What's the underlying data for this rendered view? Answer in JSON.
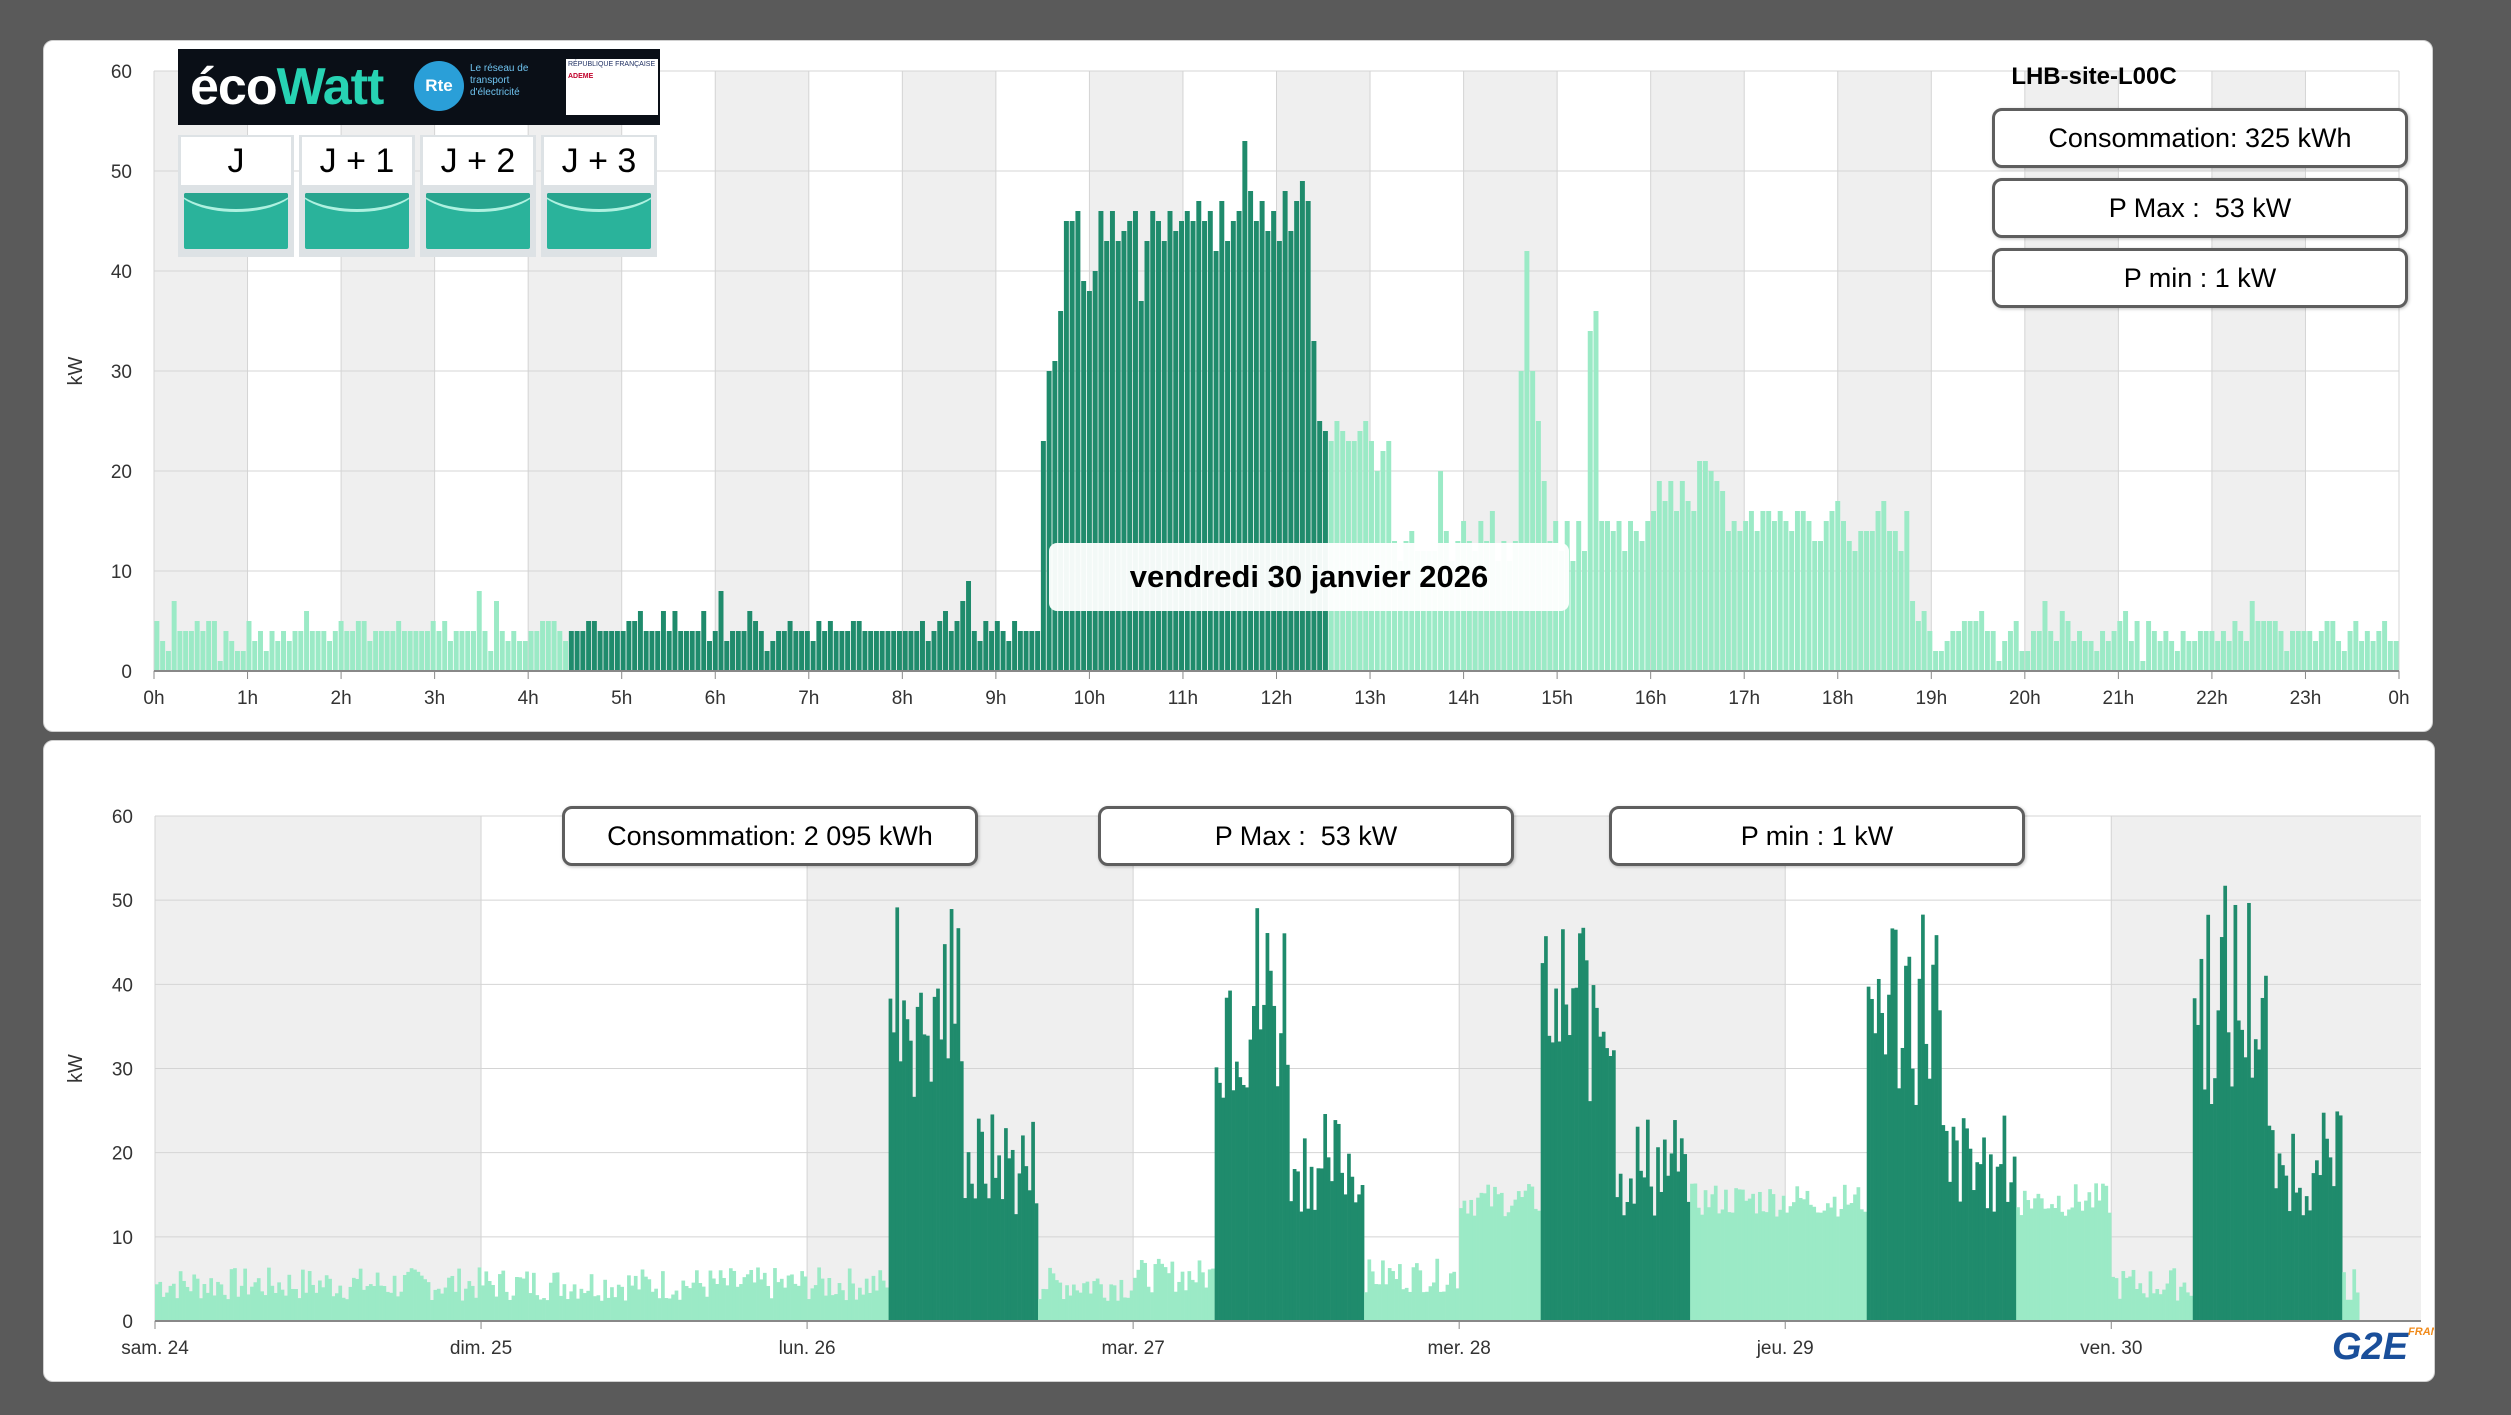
{
  "colors": {
    "accent_dark": "#1f8b6c",
    "accent_light": "#9beac6",
    "band_gray": "#efefef",
    "grid": "#d4d4d4"
  },
  "top_panel": {
    "site_title": "LHB-site-L00C",
    "consumption": "Consommation: 325 kWh",
    "pmax": "P Max :  53 kW",
    "pmin": "P min : 1 kW",
    "day_label": "vendredi 30 janvier 2026"
  },
  "ecowatt": {
    "logo_main": "éco",
    "logo_accent": "Watt",
    "rte_badge": "Rte",
    "rte_text": "Le réseau de transport d'électricité",
    "republique_text": "RÉPUBLIQUE FRANÇAISE",
    "ademe_text": "ADEME",
    "days": [
      "J",
      "J + 1",
      "J + 2",
      "J + 3"
    ],
    "signal_colors": [
      "#2ab39b",
      "#2ab39b",
      "#2ab39b",
      "#2ab39b"
    ]
  },
  "bottom_panel": {
    "consumption": "Consommation: 2 095 kWh",
    "pmax": "P Max :  53 kW",
    "pmin": "P min : 1 kW"
  },
  "footer_logo": "G2E",
  "footer_logo_sub": "FRANCE",
  "chart_data": [
    {
      "type": "bar",
      "ylabel": "kW",
      "ylim": [
        0,
        60
      ],
      "yticks": [
        0,
        10,
        20,
        30,
        40,
        50,
        60
      ],
      "x_tick_labels": [
        "0h",
        "1h",
        "2h",
        "3h",
        "4h",
        "5h",
        "6h",
        "7h",
        "8h",
        "9h",
        "10h",
        "11h",
        "12h",
        "13h",
        "14h",
        "15h",
        "16h",
        "17h",
        "18h",
        "19h",
        "20h",
        "21h",
        "22h",
        "23h",
        "0h"
      ],
      "interval_minutes": 5,
      "dark_range_hours": [
        6,
        17
      ],
      "highlight_bands_hours": [
        [
          0,
          1
        ],
        [
          2,
          3
        ],
        [
          4,
          5
        ],
        [
          6,
          7
        ],
        [
          8,
          9
        ],
        [
          10,
          11
        ],
        [
          12,
          13
        ],
        [
          14,
          15
        ],
        [
          16,
          17
        ],
        [
          18,
          19
        ],
        [
          20,
          21
        ],
        [
          22,
          23
        ]
      ],
      "values": [
        5,
        3,
        2,
        7,
        4,
        4,
        4,
        5,
        4,
        5,
        5,
        1,
        4,
        3,
        2,
        2,
        5,
        3,
        4,
        2,
        4,
        3,
        4,
        3,
        4,
        4,
        6,
        4,
        4,
        4,
        3,
        4,
        5,
        4,
        4,
        5,
        5,
        3,
        4,
        4,
        4,
        4,
        5,
        4,
        4,
        4,
        4,
        4,
        5,
        4,
        5,
        3,
        4,
        4,
        4,
        4,
        8,
        4,
        2,
        7,
        4,
        3,
        4,
        3,
        3,
        4,
        4,
        5,
        5,
        5,
        4,
        3,
        4,
        4,
        4,
        5,
        5,
        4,
        4,
        4,
        4,
        4,
        5,
        5,
        6,
        4,
        4,
        4,
        6,
        4,
        6,
        4,
        4,
        4,
        4,
        6,
        3,
        4,
        8,
        3,
        4,
        4,
        4,
        6,
        5,
        4,
        2,
        3,
        4,
        4,
        5,
        4,
        4,
        4,
        3,
        5,
        4,
        5,
        4,
        4,
        4,
        5,
        5,
        4,
        4,
        4,
        4,
        4,
        4,
        4,
        4,
        4,
        4,
        5,
        3,
        4,
        5,
        6,
        4,
        5,
        7,
        9,
        4,
        3,
        5,
        4,
        5,
        4,
        3,
        5,
        4,
        4,
        4,
        4,
        23,
        30,
        31,
        36,
        45,
        45,
        46,
        39,
        38,
        40,
        46,
        43,
        46,
        43,
        44,
        45,
        46,
        37,
        43,
        46,
        45,
        43,
        46,
        44,
        45,
        46,
        45,
        47,
        45,
        46,
        42,
        47,
        43,
        45,
        46,
        53,
        48,
        45,
        47,
        44,
        46,
        43,
        48,
        44,
        47,
        49,
        47,
        33,
        25,
        24,
        23,
        25,
        24,
        23,
        23,
        24,
        25,
        23,
        20,
        22,
        23,
        13,
        11,
        13,
        14,
        12,
        12,
        12,
        12,
        20,
        14,
        11,
        13,
        15,
        13,
        12,
        15,
        13,
        16,
        11,
        13,
        11,
        13,
        30,
        42,
        30,
        25,
        19,
        13,
        15,
        12,
        15,
        11,
        15,
        12,
        34,
        36,
        15,
        15,
        14,
        15,
        12,
        15,
        14,
        13,
        15,
        16,
        19,
        17,
        19,
        16,
        19,
        17,
        16,
        21,
        21,
        20,
        19,
        18,
        14,
        15,
        14,
        15,
        16,
        14,
        16,
        16,
        15,
        16,
        15,
        14,
        16,
        16,
        15,
        13,
        13,
        15,
        16,
        17,
        15,
        13,
        12,
        14,
        14,
        14,
        16,
        17,
        14,
        14,
        12,
        16,
        7,
        5,
        6,
        4,
        2,
        2,
        3,
        4,
        4,
        5,
        5,
        5,
        6,
        4,
        4,
        1,
        3,
        4,
        5,
        2,
        2,
        4,
        4,
        7,
        4,
        3,
        6,
        5,
        3,
        4,
        3,
        3,
        2,
        4,
        3,
        4,
        5,
        6,
        3,
        5,
        1,
        5,
        4,
        3,
        4,
        3,
        2,
        4,
        3,
        3,
        4,
        4,
        4,
        3,
        4,
        3,
        5,
        4,
        3,
        7,
        5,
        5,
        5,
        5,
        4,
        2,
        4,
        4,
        4,
        4,
        3,
        4,
        5,
        5,
        3,
        2,
        4,
        5,
        3,
        4,
        3,
        4,
        5,
        3,
        3
      ]
    },
    {
      "type": "bar",
      "ylabel": "kW",
      "ylim": [
        0,
        60
      ],
      "yticks": [
        0,
        10,
        20,
        30,
        40,
        50,
        60
      ],
      "categories": [
        "sam. 24",
        "dim. 25",
        "lun. 26",
        "mar. 27",
        "mer. 28",
        "jeu. 29",
        "ven. 30"
      ],
      "interval_minutes": 15,
      "daily_profiles": [
        {
          "day": "sam. 24",
          "base_kw": 4,
          "dark": false,
          "active_hours": null,
          "peak_kw": 6
        },
        {
          "day": "dim. 25",
          "base_kw": 4,
          "dark": false,
          "active_hours": null,
          "peak_kw": 6
        },
        {
          "day": "lun. 26",
          "base_kw": 4,
          "dark": true,
          "active_hours": [
            6,
            17
          ],
          "peak_kw": 52
        },
        {
          "day": "mar. 27",
          "base_kw": 5,
          "dark": true,
          "active_hours": [
            6,
            17
          ],
          "peak_kw": 52
        },
        {
          "day": "mer. 28",
          "base_kw": 14,
          "dark": true,
          "active_hours": [
            6,
            17
          ],
          "peak_kw": 51
        },
        {
          "day": "jeu. 29",
          "base_kw": 14,
          "dark": true,
          "active_hours": [
            6,
            17
          ],
          "peak_kw": 52
        },
        {
          "day": "ven. 30",
          "base_kw": 4,
          "dark": true,
          "active_hours": [
            6,
            17
          ],
          "peak_kw": 53
        }
      ]
    }
  ]
}
